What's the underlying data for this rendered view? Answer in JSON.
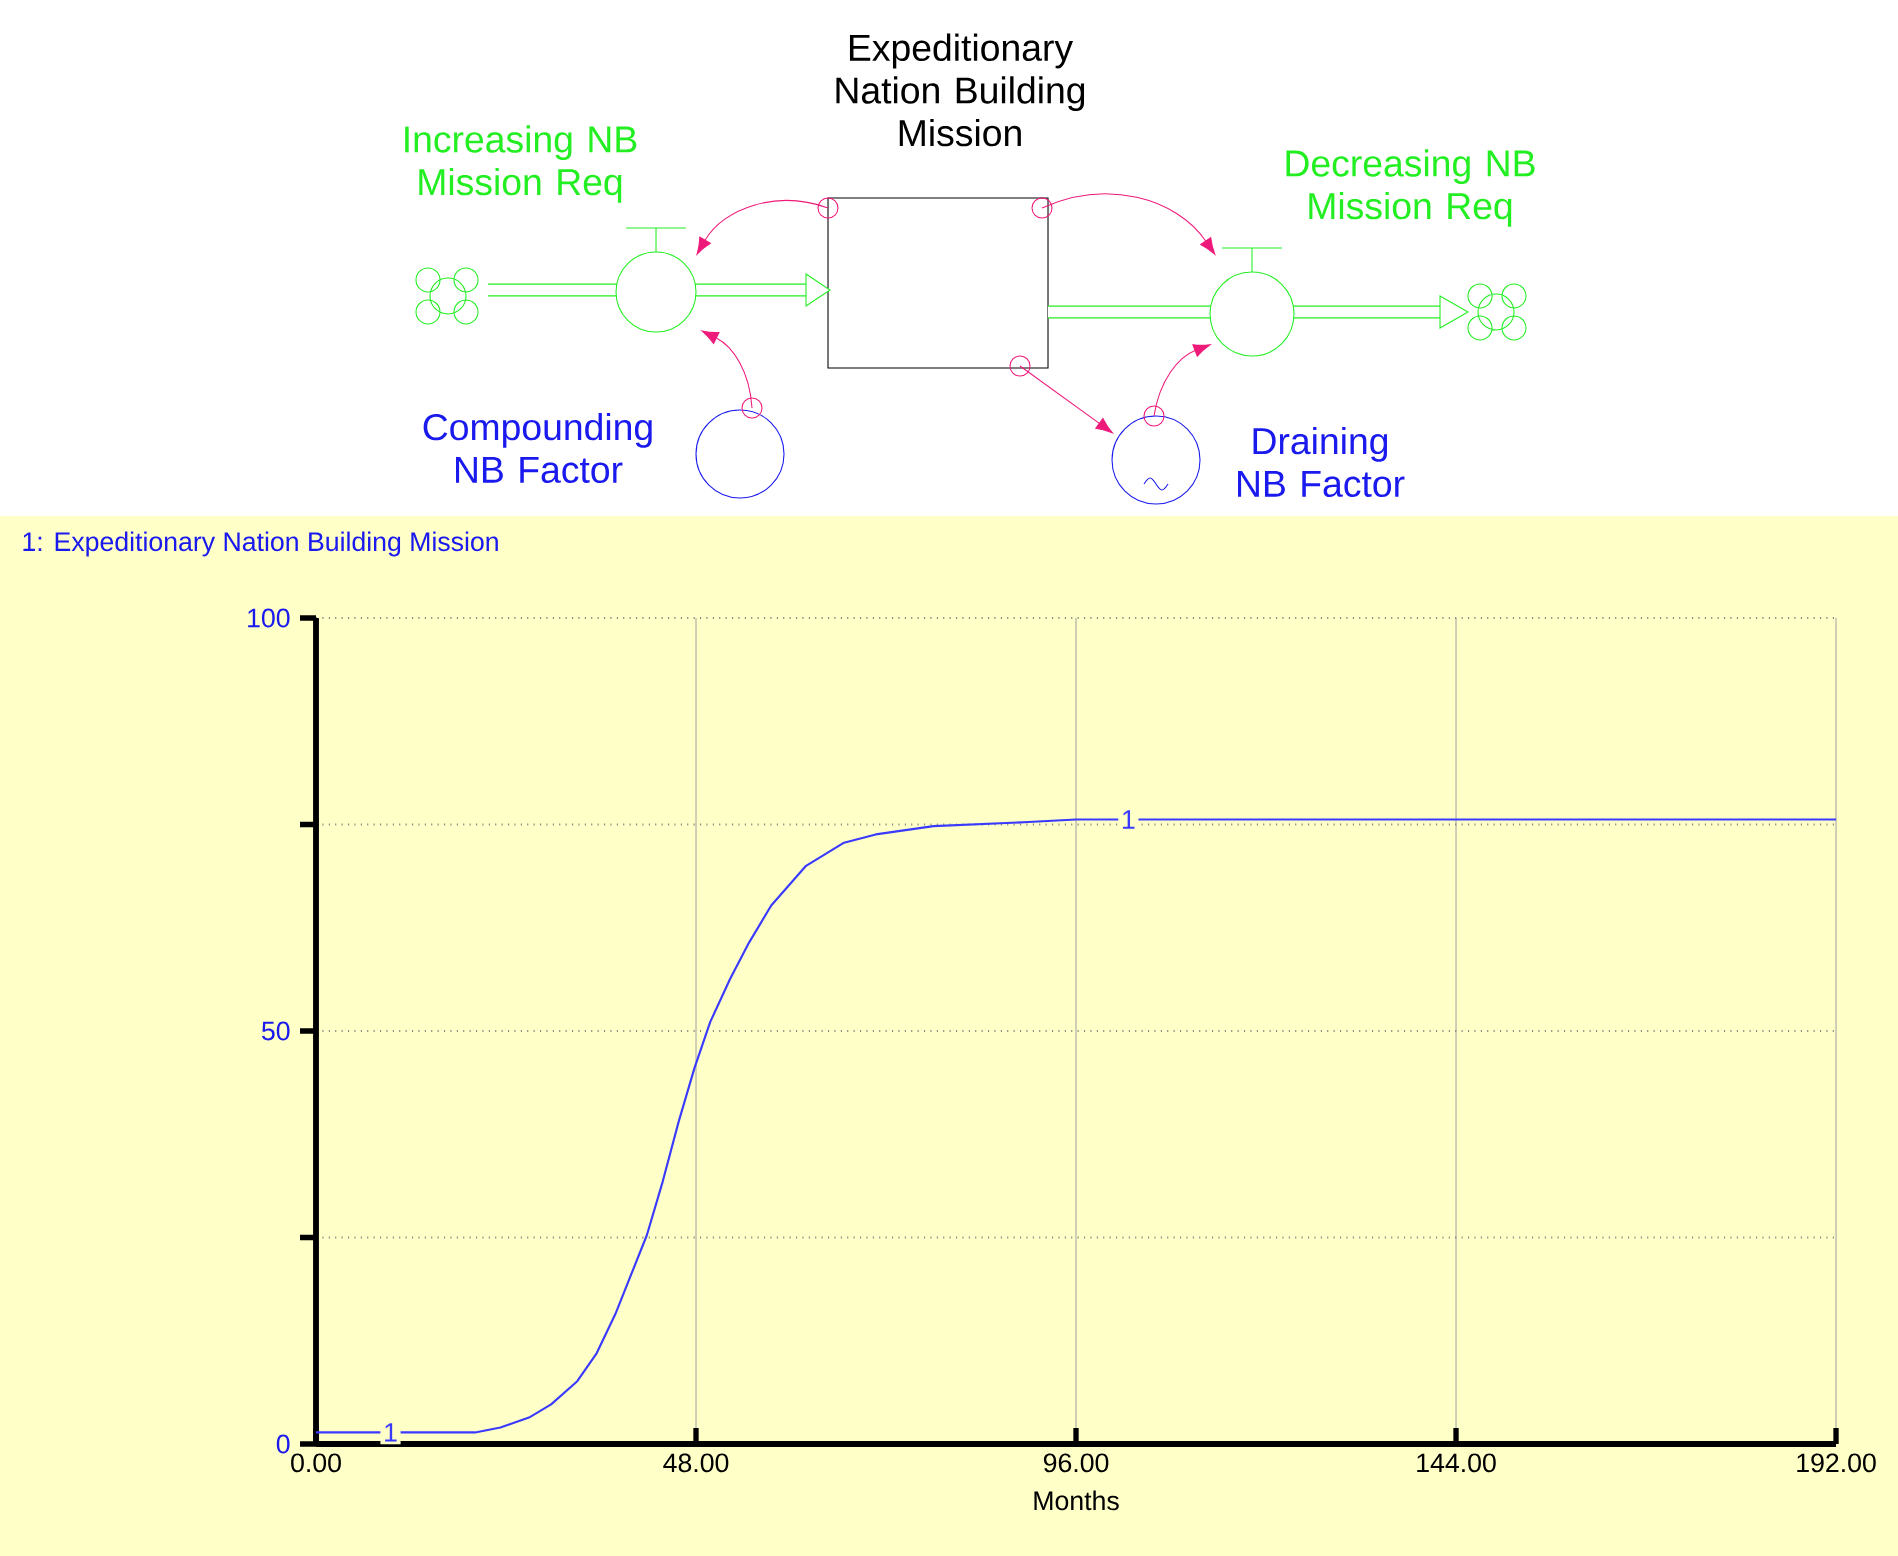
{
  "chart_data": {
    "type": "line",
    "title": "1: Expeditionary Nation Building Mission",
    "xlabel": "Months",
    "annotations": [
      "Expeditionary Nation Building Mission",
      "Increasing NB Mission Req",
      "Decreasing NB Mission Req",
      "Compounding NB Factor",
      "Draining NB Factor"
    ],
    "series": [
      {
        "name": "1",
        "color": "#3a3aff",
        "x": [
          0,
          20.1,
          23.3,
          26.9,
          29.7,
          33.0,
          35.4,
          37.8,
          39.8,
          41.8,
          43.8,
          45.8,
          47.8,
          49.8,
          52.3,
          54.7,
          57.5,
          61.9,
          66.7,
          70.7,
          78,
          90,
          96,
          192
        ],
        "values": [
          1.4,
          1.4,
          2.0,
          3.2,
          4.8,
          7.6,
          10.9,
          15.7,
          20.5,
          25.3,
          31.8,
          39.0,
          45.5,
          51.1,
          56.3,
          60.7,
          65.2,
          70.0,
          72.8,
          73.8,
          74.8,
          75.3,
          75.6,
          75.6
        ]
      }
    ],
    "xlim": [
      0,
      192
    ],
    "ylim": [
      0,
      100
    ],
    "xticks": [
      {
        "value": 0,
        "label": "0.00"
      },
      {
        "value": 48,
        "label": "48.00"
      },
      {
        "value": 96,
        "label": "96.00"
      },
      {
        "value": 144,
        "label": "144.00"
      },
      {
        "value": 192,
        "label": "192.00"
      }
    ],
    "yticks": [
      0,
      {
        "value": 25,
        "label": null
      },
      50,
      {
        "value": 75,
        "label": null
      },
      100
    ],
    "grid": true,
    "legend": false
  }
}
